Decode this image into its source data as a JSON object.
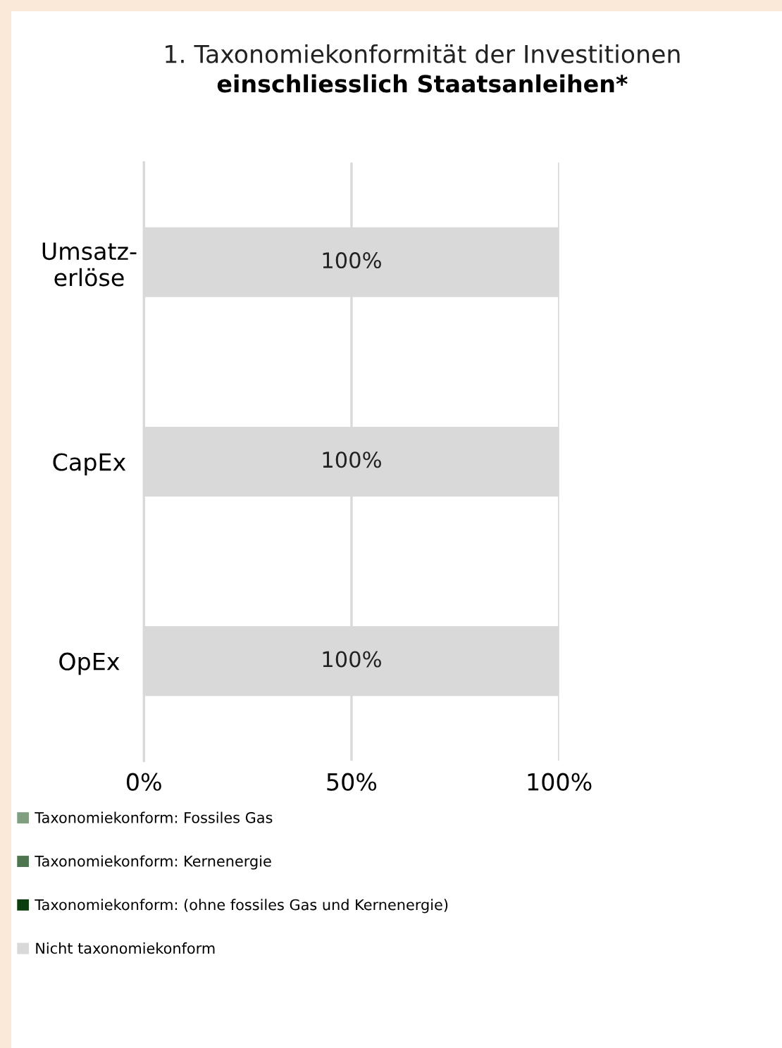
{
  "chart_data": {
    "type": "bar",
    "orientation": "horizontal",
    "stacked": true,
    "title": "1. Taxonomiekonformität der Investitionen",
    "subtitle": "einschliesslich Staatsanleihen*",
    "categories": [
      "Umsatz-\nerlöse",
      "CapEx",
      "OpEx"
    ],
    "series": [
      {
        "name": "Taxonomiekonform: Fossiles Gas",
        "color": "#7f9f80",
        "values": [
          0,
          0,
          0
        ],
        "value_labels": [
          null,
          null,
          null
        ]
      },
      {
        "name": "Taxonomiekonform: Kernenergie",
        "color": "#4d7550",
        "values": [
          0,
          0,
          0
        ],
        "value_labels": [
          null,
          null,
          null
        ]
      },
      {
        "name": "Taxonomiekonform: (ohne fossiles Gas und Kernenergie)",
        "color": "#0b3d0e",
        "values": [
          0,
          0,
          0
        ],
        "value_labels": [
          null,
          null,
          null
        ]
      },
      {
        "name": "Nicht taxonomiekonform",
        "color": "#d9d9d9",
        "values": [
          100,
          100,
          100
        ],
        "value_labels": [
          "100%",
          "100%",
          "100%"
        ]
      }
    ],
    "xlim": [
      0,
      100
    ],
    "xticks": [
      {
        "value": 0,
        "label": "0%"
      },
      {
        "value": 50,
        "label": "50%"
      },
      {
        "value": 100,
        "label": "100%"
      }
    ],
    "grid": "x",
    "legend": "bottom left"
  }
}
